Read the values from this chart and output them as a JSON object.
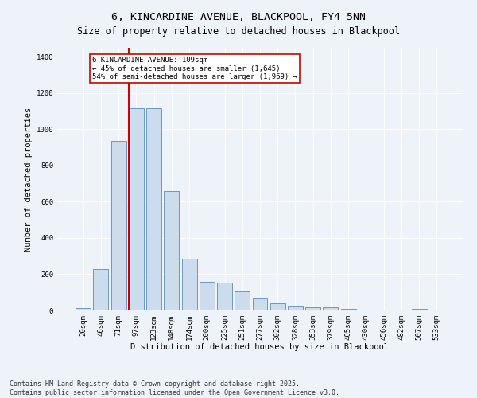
{
  "title": "6, KINCARDINE AVENUE, BLACKPOOL, FY4 5NN",
  "subtitle": "Size of property relative to detached houses in Blackpool",
  "xlabel": "Distribution of detached houses by size in Blackpool",
  "ylabel": "Number of detached properties",
  "categories": [
    "20sqm",
    "46sqm",
    "71sqm",
    "97sqm",
    "123sqm",
    "148sqm",
    "174sqm",
    "200sqm",
    "225sqm",
    "251sqm",
    "277sqm",
    "302sqm",
    "328sqm",
    "353sqm",
    "379sqm",
    "405sqm",
    "430sqm",
    "456sqm",
    "482sqm",
    "507sqm",
    "533sqm"
  ],
  "values": [
    15,
    230,
    935,
    1115,
    1115,
    660,
    285,
    160,
    155,
    105,
    68,
    40,
    20,
    18,
    18,
    10,
    5,
    3,
    2,
    8,
    2
  ],
  "bar_color": "#ccdcec",
  "bar_edge_color": "#5b8db8",
  "vline_pos": 2.58,
  "vline_color": "#cc0000",
  "annotation_text": "6 KINCARDINE AVENUE: 109sqm\n← 45% of detached houses are smaller (1,645)\n54% of semi-detached houses are larger (1,969) →",
  "annotation_box_color": "#cc0000",
  "annotation_fill": "#ffffff",
  "ylim": [
    0,
    1450
  ],
  "yticks": [
    0,
    200,
    400,
    600,
    800,
    1000,
    1200,
    1400
  ],
  "footer": "Contains HM Land Registry data © Crown copyright and database right 2025.\nContains public sector information licensed under the Open Government Licence v3.0.",
  "background_color": "#eef2f9",
  "grid_color": "#ffffff",
  "title_fontsize": 9.5,
  "axis_fontsize": 7.5,
  "tick_fontsize": 6.5,
  "footer_fontsize": 6.0,
  "annotation_fontsize": 6.5
}
